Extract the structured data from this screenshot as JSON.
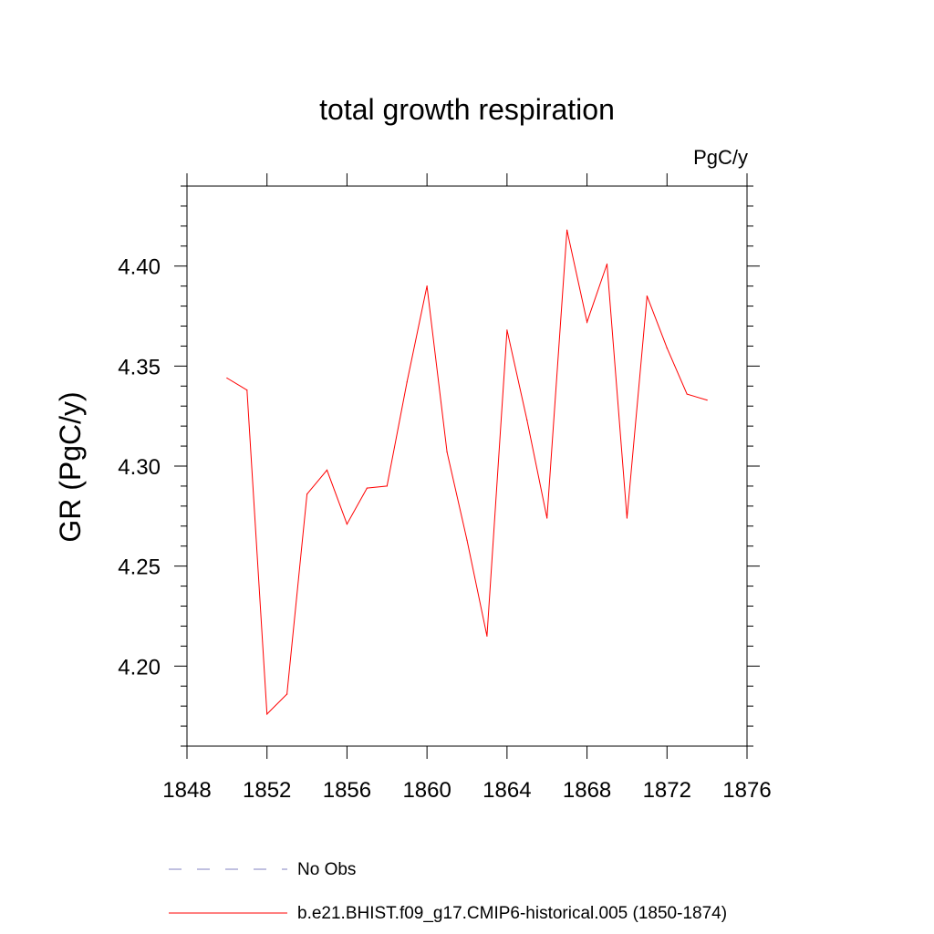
{
  "chart_data": {
    "type": "line",
    "title": "total growth respiration",
    "units_label": "PgC/y",
    "xlabel": "",
    "ylabel": "GR  (PgC/y)",
    "xlim": [
      1848,
      1876
    ],
    "ylim": [
      4.16,
      4.44
    ],
    "xticks": [
      1848,
      1852,
      1856,
      1860,
      1864,
      1868,
      1872,
      1876
    ],
    "xtick_labels": [
      "1848",
      "1852",
      "1856",
      "1860",
      "1864",
      "1868",
      "1872",
      "1876"
    ],
    "yticks": [
      4.2,
      4.25,
      4.3,
      4.35,
      4.4
    ],
    "ytick_labels": [
      "4.20",
      "4.25",
      "4.30",
      "4.35",
      "4.40"
    ],
    "grid": false,
    "series": [
      {
        "name": "b.e21.BHIST.f09_g17.CMIP6-historical.005 (1850-1874)",
        "color": "#ff0000",
        "x": [
          1850,
          1851,
          1852,
          1853,
          1854,
          1855,
          1856,
          1857,
          1858,
          1859,
          1860,
          1861,
          1862,
          1863,
          1864,
          1865,
          1866,
          1867,
          1868,
          1869,
          1870,
          1871,
          1872,
          1873,
          1874
        ],
        "y": [
          4.344,
          4.338,
          4.176,
          4.186,
          4.286,
          4.298,
          4.271,
          4.289,
          4.29,
          4.342,
          4.39,
          4.307,
          4.263,
          4.215,
          4.368,
          4.323,
          4.274,
          4.418,
          4.372,
          4.401,
          4.274,
          4.385,
          4.359,
          4.336,
          4.333
        ]
      }
    ],
    "legend": [
      {
        "label": "No Obs",
        "style": "dashed",
        "color": "#8080c0"
      },
      {
        "label": "b.e21.BHIST.f09_g17.CMIP6-historical.005 (1850-1874)",
        "style": "solid",
        "color": "#ff0000"
      }
    ]
  }
}
